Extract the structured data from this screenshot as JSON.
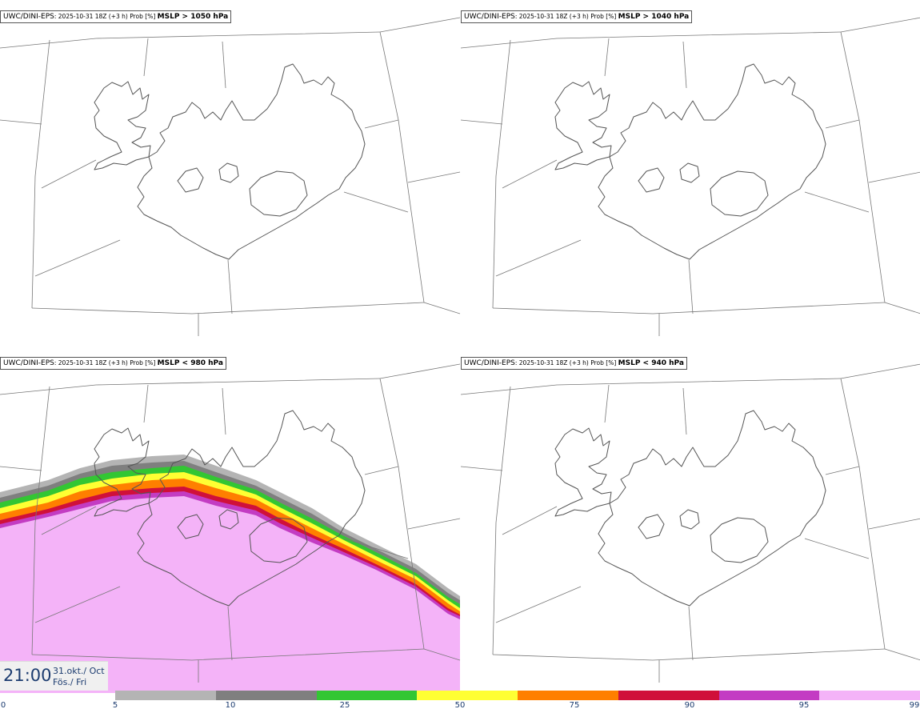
{
  "panels": [
    {
      "model": "UWC/DINI-EPS",
      "meta": ": 2025-10-31 18Z (+3 h) Prob [%] ",
      "threshold": "MSLP > 1050 hPa",
      "filled": false
    },
    {
      "model": "UWC/DINI-EPS",
      "meta": ": 2025-10-31 18Z (+3 h) Prob [%] ",
      "threshold": "MSLP > 1040 hPa",
      "filled": false
    },
    {
      "model": "UWC/DINI-EPS",
      "meta": ": 2025-10-31 18Z (+3 h) Prob [%] ",
      "threshold": "MSLP < 980 hPa",
      "filled": true
    },
    {
      "model": "UWC/DINI-EPS",
      "meta": ": 2025-10-31 18Z (+3 h) Prob [%] ",
      "threshold": "MSLP < 940 hPa",
      "filled": false
    }
  ],
  "time": {
    "clock": "21:00",
    "date_line1": "31.okt./ Oct",
    "date_line2": "Fös./ Fri"
  },
  "colorbar": {
    "ticks": [
      "0",
      "5",
      "10",
      "25",
      "50",
      "75",
      "90",
      "95",
      "99"
    ],
    "colors": [
      "#b4b4b4",
      "#7f7f7f",
      "#33c633",
      "#ffff33",
      "#ff7f00",
      "#d0103a",
      "#c33cc3",
      "#f4b3f8"
    ]
  },
  "colors": {
    "coast": "#555555",
    "grid": "#777777"
  }
}
